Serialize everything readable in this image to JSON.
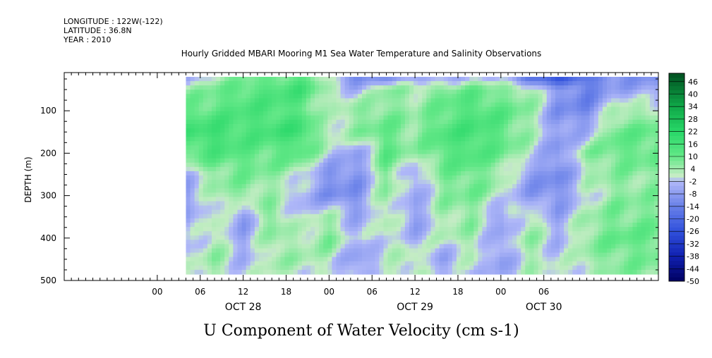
{
  "header": {
    "longitude": "LONGITUDE : 122W(-122)",
    "latitude": "LATITUDE : 36.8N",
    "year": "YEAR : 2010"
  },
  "chart_data": {
    "type": "heatmap",
    "title": "Hourly Gridded MBARI Mooring M1 Sea Water Temperature and Salinity Observations",
    "variable_title": "U Component of Water Velocity (cm s-1)",
    "ylabel": "DEPTH (m)",
    "xlabel": "",
    "ylim": [
      500,
      10
    ],
    "yticks": [
      100,
      200,
      300,
      400,
      500
    ],
    "x_hour_range": [
      -13,
      70
    ],
    "data_start_hour": 4,
    "depth_top": 20,
    "depth_bottom": 485,
    "x_ticks": [
      {
        "hour": 0,
        "label": "00"
      },
      {
        "hour": 6,
        "label": "06"
      },
      {
        "hour": 12,
        "label": "12"
      },
      {
        "hour": 18,
        "label": "18"
      },
      {
        "hour": 24,
        "label": "00"
      },
      {
        "hour": 30,
        "label": "06"
      },
      {
        "hour": 36,
        "label": "12"
      },
      {
        "hour": 42,
        "label": "18"
      },
      {
        "hour": 48,
        "label": "00"
      },
      {
        "hour": 54,
        "label": "06"
      }
    ],
    "day_labels": [
      {
        "hour": 12,
        "label": "OCT 28"
      },
      {
        "hour": 36,
        "label": "OCT 29"
      },
      {
        "hour": 54,
        "label": "OCT 30"
      }
    ],
    "colorbar": {
      "min": -50,
      "max": 50,
      "levels": [
        -50,
        -44,
        -38,
        -32,
        -26,
        -20,
        -14,
        -8,
        -2,
        4,
        10,
        16,
        22,
        28,
        34,
        40,
        46
      ],
      "labels": [
        "46",
        "40",
        "34",
        "28",
        "22",
        "16",
        "10",
        "4",
        "-2",
        "-8",
        "-14",
        "-20",
        "-26",
        "-32",
        "-38",
        "-44",
        "-50"
      ]
    },
    "grid_hours": [
      4,
      8,
      12,
      16,
      20,
      24,
      28,
      32,
      36,
      40,
      44,
      48,
      52,
      56,
      60,
      64
    ],
    "grid_depths": [
      20,
      50,
      100,
      150,
      200,
      250,
      300,
      350,
      400,
      450,
      485
    ],
    "grid_values": [
      [
        -6,
        2,
        6,
        9,
        12,
        -2,
        -12,
        -10,
        -8,
        -6,
        -2,
        -4,
        -20,
        -24,
        -18,
        -10
      ],
      [
        4,
        8,
        12,
        14,
        16,
        4,
        -4,
        6,
        4,
        8,
        10,
        6,
        6,
        -8,
        -14,
        -6
      ],
      [
        10,
        12,
        14,
        14,
        12,
        0,
        6,
        8,
        4,
        10,
        14,
        12,
        6,
        -10,
        -12,
        4
      ],
      [
        16,
        18,
        14,
        16,
        18,
        2,
        6,
        10,
        6,
        14,
        16,
        12,
        4,
        -8,
        -4,
        10
      ],
      [
        10,
        14,
        12,
        10,
        12,
        0,
        -8,
        12,
        4,
        12,
        14,
        10,
        2,
        -10,
        6,
        10
      ],
      [
        -4,
        6,
        8,
        6,
        2,
        -10,
        -10,
        8,
        -6,
        8,
        10,
        4,
        -8,
        -12,
        2,
        6
      ],
      [
        -8,
        4,
        6,
        4,
        -4,
        -10,
        -10,
        6,
        -6,
        6,
        8,
        2,
        -8,
        -10,
        0,
        6
      ],
      [
        -6,
        2,
        -8,
        8,
        -2,
        4,
        -6,
        4,
        -8,
        4,
        6,
        -8,
        4,
        -6,
        4,
        8
      ],
      [
        -4,
        4,
        -6,
        6,
        2,
        8,
        -4,
        2,
        -4,
        2,
        4,
        -6,
        6,
        -4,
        6,
        10
      ],
      [
        -2,
        6,
        -4,
        4,
        4,
        2,
        -8,
        0,
        4,
        -6,
        2,
        -8,
        4,
        -2,
        4,
        8
      ],
      [
        0,
        4,
        -2,
        2,
        2,
        0,
        -6,
        2,
        2,
        -4,
        0,
        -6,
        2,
        0,
        2,
        6
      ]
    ]
  }
}
